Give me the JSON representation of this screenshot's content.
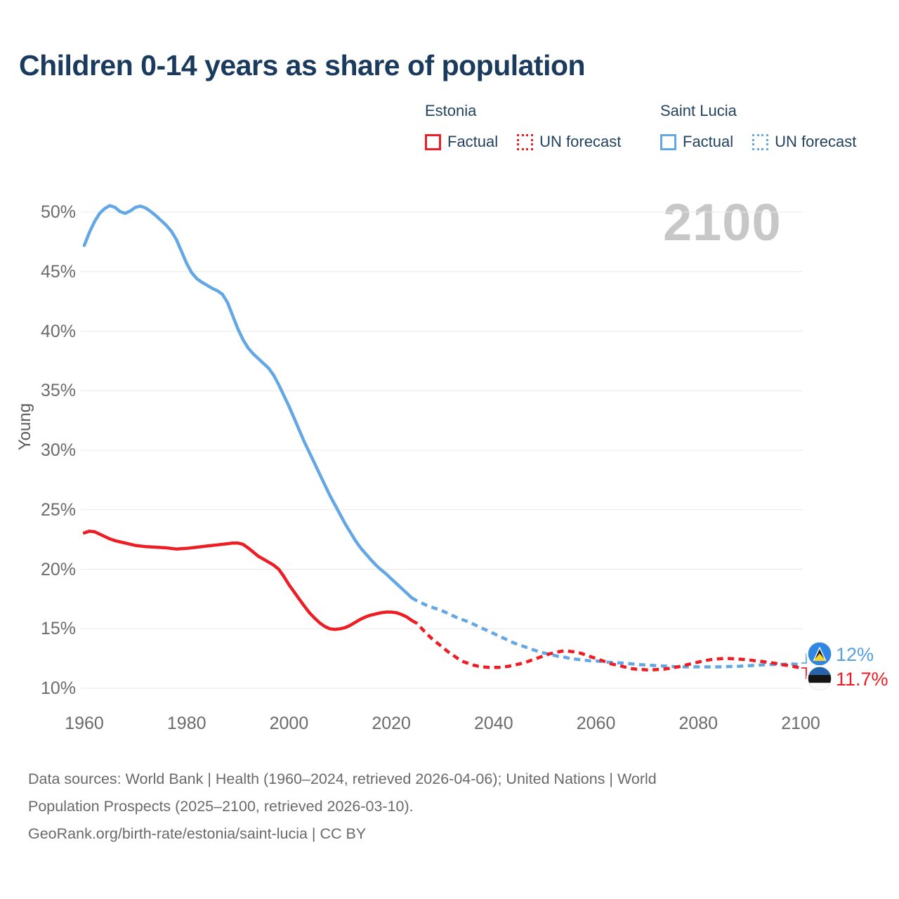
{
  "title": "Children 0-14 years as share of population",
  "watermark_year": "2100",
  "legend": {
    "estonia": {
      "label": "Estonia",
      "factual_label": "Factual",
      "forecast_label": "UN forecast",
      "color": "#ee1d23"
    },
    "saint_lucia": {
      "label": "Saint Lucia",
      "factual_label": "Factual",
      "forecast_label": "UN forecast",
      "color": "#64a7e5"
    }
  },
  "y_axis": {
    "label": "Young",
    "ticks": [
      "50%",
      "45%",
      "40%",
      "35%",
      "30%",
      "25%",
      "20%",
      "15%",
      "10%"
    ],
    "tick_values": [
      50,
      45,
      40,
      35,
      30,
      25,
      20,
      15,
      10
    ]
  },
  "x_axis": {
    "ticks": [
      "1960",
      "1980",
      "2000",
      "2020",
      "2040",
      "2060",
      "2080",
      "2100"
    ],
    "tick_values": [
      1960,
      1980,
      2000,
      2020,
      2040,
      2060,
      2080,
      2100
    ]
  },
  "end_labels": {
    "saint_lucia": {
      "value": "12%",
      "color": "#569fe0",
      "flag": "saint-lucia-flag"
    },
    "estonia": {
      "value": "11.7%",
      "color": "#ee1d23",
      "flag": "estonia-flag"
    }
  },
  "footer": {
    "line1": "Data sources: World Bank | Health (1960–2024, retrieved 2026-04-06); United Nations | World",
    "line2": "Population Prospects (2025–2100, retrieved 2026-03-10).",
    "line3": "GeoRank.org/birth-rate/estonia/saint-lucia | CC BY"
  },
  "chart_data": {
    "type": "line",
    "title": "Children 0-14 years as share of population",
    "xlabel": "",
    "ylabel": "Young",
    "xlim": [
      1960,
      2100
    ],
    "ylim": [
      10,
      52
    ],
    "grid": "horizontal",
    "legend_position": "top-right",
    "unit": "percent",
    "series": [
      {
        "name": "Saint Lucia Factual",
        "country": "Saint Lucia",
        "style": "solid",
        "color": "#64a7e5",
        "points": [
          [
            1960,
            47.2
          ],
          [
            1961,
            48.3
          ],
          [
            1962,
            49.2
          ],
          [
            1963,
            49.9
          ],
          [
            1964,
            50.3
          ],
          [
            1965,
            50.55
          ],
          [
            1966,
            50.4
          ],
          [
            1967,
            50.05
          ],
          [
            1968,
            49.9
          ],
          [
            1969,
            50.1
          ],
          [
            1970,
            50.4
          ],
          [
            1971,
            50.5
          ],
          [
            1972,
            50.35
          ],
          [
            1973,
            50.05
          ],
          [
            1974,
            49.7
          ],
          [
            1975,
            49.3
          ],
          [
            1976,
            48.9
          ],
          [
            1977,
            48.4
          ],
          [
            1978,
            47.7
          ],
          [
            1979,
            46.7
          ],
          [
            1980,
            45.7
          ],
          [
            1981,
            44.9
          ],
          [
            1982,
            44.4
          ],
          [
            1983,
            44.1
          ],
          [
            1984,
            43.85
          ],
          [
            1985,
            43.6
          ],
          [
            1986,
            43.4
          ],
          [
            1987,
            43.1
          ],
          [
            1988,
            42.4
          ],
          [
            1989,
            41.3
          ],
          [
            1990,
            40.2
          ],
          [
            1991,
            39.3
          ],
          [
            1992,
            38.6
          ],
          [
            1993,
            38.1
          ],
          [
            1994,
            37.7
          ],
          [
            1995,
            37.3
          ],
          [
            1996,
            36.9
          ],
          [
            1997,
            36.3
          ],
          [
            1998,
            35.5
          ],
          [
            1999,
            34.6
          ],
          [
            2000,
            33.7
          ],
          [
            2001,
            32.7
          ],
          [
            2002,
            31.7
          ],
          [
            2003,
            30.7
          ],
          [
            2004,
            29.8
          ],
          [
            2005,
            28.9
          ],
          [
            2006,
            28.0
          ],
          [
            2007,
            27.1
          ],
          [
            2008,
            26.2
          ],
          [
            2009,
            25.4
          ],
          [
            2010,
            24.6
          ],
          [
            2011,
            23.8
          ],
          [
            2012,
            23.1
          ],
          [
            2013,
            22.4
          ],
          [
            2014,
            21.8
          ],
          [
            2015,
            21.3
          ],
          [
            2016,
            20.8
          ],
          [
            2017,
            20.35
          ],
          [
            2018,
            19.95
          ],
          [
            2019,
            19.6
          ],
          [
            2020,
            19.2
          ],
          [
            2021,
            18.8
          ],
          [
            2022,
            18.4
          ],
          [
            2023,
            18.0
          ],
          [
            2024,
            17.6
          ]
        ]
      },
      {
        "name": "Saint Lucia UN forecast",
        "country": "Saint Lucia",
        "style": "dashed",
        "color": "#64a7e5",
        "points": [
          [
            2024,
            17.6
          ],
          [
            2025,
            17.35
          ],
          [
            2026,
            17.15
          ],
          [
            2027,
            16.95
          ],
          [
            2028,
            16.8
          ],
          [
            2029,
            16.65
          ],
          [
            2030,
            16.5
          ],
          [
            2031,
            16.3
          ],
          [
            2032,
            16.1
          ],
          [
            2033,
            15.9
          ],
          [
            2034,
            15.75
          ],
          [
            2035,
            15.6
          ],
          [
            2036,
            15.4
          ],
          [
            2037,
            15.2
          ],
          [
            2038,
            15.0
          ],
          [
            2039,
            14.8
          ],
          [
            2040,
            14.6
          ],
          [
            2041,
            14.4
          ],
          [
            2042,
            14.2
          ],
          [
            2043,
            14.0
          ],
          [
            2044,
            13.8
          ],
          [
            2045,
            13.65
          ],
          [
            2046,
            13.5
          ],
          [
            2047,
            13.35
          ],
          [
            2048,
            13.2
          ],
          [
            2049,
            13.05
          ],
          [
            2050,
            12.95
          ],
          [
            2051,
            12.85
          ],
          [
            2052,
            12.75
          ],
          [
            2053,
            12.65
          ],
          [
            2054,
            12.6
          ],
          [
            2055,
            12.5
          ],
          [
            2056,
            12.45
          ],
          [
            2057,
            12.4
          ],
          [
            2058,
            12.35
          ],
          [
            2059,
            12.3
          ],
          [
            2060,
            12.3
          ],
          [
            2062,
            12.2
          ],
          [
            2064,
            12.15
          ],
          [
            2066,
            12.1
          ],
          [
            2068,
            12.0
          ],
          [
            2070,
            11.95
          ],
          [
            2072,
            11.9
          ],
          [
            2074,
            11.85
          ],
          [
            2076,
            11.8
          ],
          [
            2080,
            11.8
          ],
          [
            2084,
            11.8
          ],
          [
            2088,
            11.85
          ],
          [
            2090,
            11.9
          ],
          [
            2092,
            11.95
          ],
          [
            2094,
            12.0
          ],
          [
            2096,
            12.0
          ],
          [
            2098,
            12.05
          ],
          [
            2100,
            12.0
          ]
        ]
      },
      {
        "name": "Estonia Factual",
        "country": "Estonia",
        "style": "solid",
        "color": "#ee1d23",
        "points": [
          [
            1960,
            23.05
          ],
          [
            1961,
            23.2
          ],
          [
            1962,
            23.15
          ],
          [
            1963,
            22.95
          ],
          [
            1964,
            22.75
          ],
          [
            1965,
            22.55
          ],
          [
            1966,
            22.4
          ],
          [
            1967,
            22.3
          ],
          [
            1968,
            22.2
          ],
          [
            1969,
            22.1
          ],
          [
            1970,
            22.0
          ],
          [
            1972,
            21.9
          ],
          [
            1974,
            21.85
          ],
          [
            1976,
            21.8
          ],
          [
            1978,
            21.7
          ],
          [
            1980,
            21.75
          ],
          [
            1982,
            21.85
          ],
          [
            1984,
            21.95
          ],
          [
            1986,
            22.05
          ],
          [
            1988,
            22.15
          ],
          [
            1989,
            22.2
          ],
          [
            1990,
            22.2
          ],
          [
            1991,
            22.1
          ],
          [
            1992,
            21.8
          ],
          [
            1993,
            21.45
          ],
          [
            1994,
            21.1
          ],
          [
            1995,
            20.85
          ],
          [
            1996,
            20.6
          ],
          [
            1997,
            20.35
          ],
          [
            1998,
            20.0
          ],
          [
            1999,
            19.4
          ],
          [
            2000,
            18.7
          ],
          [
            2001,
            18.1
          ],
          [
            2002,
            17.5
          ],
          [
            2003,
            16.9
          ],
          [
            2004,
            16.35
          ],
          [
            2005,
            15.9
          ],
          [
            2006,
            15.5
          ],
          [
            2007,
            15.2
          ],
          [
            2008,
            15.0
          ],
          [
            2009,
            14.95
          ],
          [
            2010,
            15.0
          ],
          [
            2011,
            15.1
          ],
          [
            2012,
            15.3
          ],
          [
            2013,
            15.55
          ],
          [
            2014,
            15.8
          ],
          [
            2015,
            16.0
          ],
          [
            2016,
            16.15
          ],
          [
            2017,
            16.25
          ],
          [
            2018,
            16.35
          ],
          [
            2019,
            16.4
          ],
          [
            2020,
            16.4
          ],
          [
            2021,
            16.35
          ],
          [
            2022,
            16.2
          ],
          [
            2023,
            16.0
          ],
          [
            2024,
            15.7
          ]
        ]
      },
      {
        "name": "Estonia UN forecast",
        "country": "Estonia",
        "style": "dashed",
        "color": "#ee1d23",
        "points": [
          [
            2024,
            15.7
          ],
          [
            2025,
            15.45
          ],
          [
            2026,
            15.0
          ],
          [
            2027,
            14.55
          ],
          [
            2028,
            14.15
          ],
          [
            2029,
            13.8
          ],
          [
            2030,
            13.45
          ],
          [
            2031,
            13.1
          ],
          [
            2032,
            12.8
          ],
          [
            2033,
            12.5
          ],
          [
            2034,
            12.25
          ],
          [
            2035,
            12.1
          ],
          [
            2036,
            11.95
          ],
          [
            2037,
            11.85
          ],
          [
            2038,
            11.8
          ],
          [
            2039,
            11.75
          ],
          [
            2040,
            11.75
          ],
          [
            2041,
            11.75
          ],
          [
            2042,
            11.8
          ],
          [
            2043,
            11.85
          ],
          [
            2044,
            11.95
          ],
          [
            2045,
            12.05
          ],
          [
            2046,
            12.15
          ],
          [
            2047,
            12.3
          ],
          [
            2048,
            12.45
          ],
          [
            2049,
            12.6
          ],
          [
            2050,
            12.75
          ],
          [
            2051,
            12.9
          ],
          [
            2052,
            13.0
          ],
          [
            2053,
            13.1
          ],
          [
            2054,
            13.15
          ],
          [
            2055,
            13.1
          ],
          [
            2056,
            13.05
          ],
          [
            2057,
            12.95
          ],
          [
            2058,
            12.8
          ],
          [
            2059,
            12.65
          ],
          [
            2060,
            12.5
          ],
          [
            2061,
            12.35
          ],
          [
            2062,
            12.2
          ],
          [
            2063,
            12.05
          ],
          [
            2064,
            11.95
          ],
          [
            2065,
            11.85
          ],
          [
            2066,
            11.75
          ],
          [
            2067,
            11.65
          ],
          [
            2068,
            11.6
          ],
          [
            2069,
            11.58
          ],
          [
            2070,
            11.55
          ],
          [
            2071,
            11.55
          ],
          [
            2072,
            11.58
          ],
          [
            2073,
            11.6
          ],
          [
            2074,
            11.65
          ],
          [
            2075,
            11.72
          ],
          [
            2076,
            11.8
          ],
          [
            2077,
            11.9
          ],
          [
            2078,
            12.0
          ],
          [
            2079,
            12.1
          ],
          [
            2080,
            12.2
          ],
          [
            2081,
            12.3
          ],
          [
            2082,
            12.38
          ],
          [
            2083,
            12.44
          ],
          [
            2084,
            12.48
          ],
          [
            2085,
            12.5
          ],
          [
            2086,
            12.5
          ],
          [
            2087,
            12.48
          ],
          [
            2088,
            12.45
          ],
          [
            2089,
            12.42
          ],
          [
            2090,
            12.38
          ],
          [
            2091,
            12.32
          ],
          [
            2092,
            12.28
          ],
          [
            2093,
            12.22
          ],
          [
            2094,
            12.15
          ],
          [
            2095,
            12.1
          ],
          [
            2096,
            12.0
          ],
          [
            2097,
            11.95
          ],
          [
            2098,
            11.88
          ],
          [
            2099,
            11.8
          ],
          [
            2100,
            11.7
          ]
        ]
      }
    ],
    "end_values": {
      "saint_lucia_2100": 12.0,
      "estonia_2100": 11.7
    }
  }
}
